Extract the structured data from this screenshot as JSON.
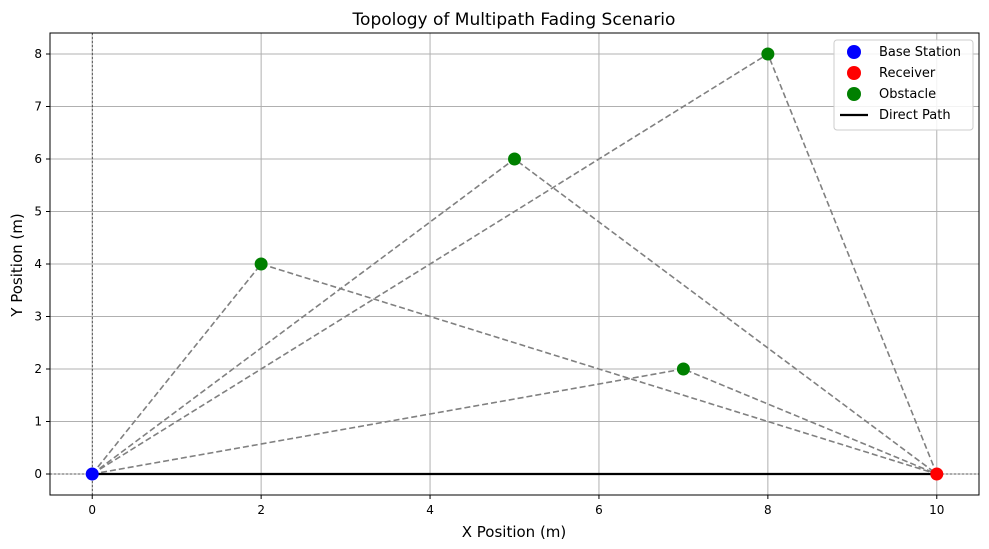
{
  "chart_data": {
    "type": "scatter",
    "title": "Topology of Multipath Fading Scenario",
    "xlabel": "X Position (m)",
    "ylabel": "Y Position (m)",
    "xlim": [
      -0.5,
      10.5
    ],
    "ylim": [
      -0.4,
      8.4
    ],
    "xticks": [
      0,
      2,
      4,
      6,
      8,
      10
    ],
    "yticks": [
      0,
      1,
      2,
      3,
      4,
      5,
      6,
      7,
      8
    ],
    "grid": true,
    "legend_position": "top-right",
    "series": [
      {
        "name": "Base Station",
        "kind": "point",
        "color": "#0000ff",
        "points": [
          [
            0,
            0
          ]
        ]
      },
      {
        "name": "Receiver",
        "kind": "point",
        "color": "#ff0000",
        "points": [
          [
            10,
            0
          ]
        ]
      },
      {
        "name": "Obstacle",
        "kind": "point",
        "color": "#008000",
        "points": [
          [
            2,
            4
          ],
          [
            5,
            6
          ],
          [
            8,
            8
          ],
          [
            7,
            2
          ]
        ]
      },
      {
        "name": "Direct Path",
        "kind": "line",
        "color": "#000000",
        "points": [
          [
            0,
            0
          ],
          [
            10,
            0
          ]
        ]
      }
    ],
    "reflected_paths": {
      "color": "#808080",
      "style": "dashed",
      "paths": [
        [
          [
            0,
            0
          ],
          [
            2,
            4
          ],
          [
            10,
            0
          ]
        ],
        [
          [
            0,
            0
          ],
          [
            5,
            6
          ],
          [
            10,
            0
          ]
        ],
        [
          [
            0,
            0
          ],
          [
            8,
            8
          ],
          [
            10,
            0
          ]
        ],
        [
          [
            0,
            0
          ],
          [
            7,
            2
          ],
          [
            10,
            0
          ]
        ]
      ]
    },
    "reference_lines": {
      "x": 0,
      "y": 0,
      "color": "#000000",
      "style": "dotted"
    }
  }
}
